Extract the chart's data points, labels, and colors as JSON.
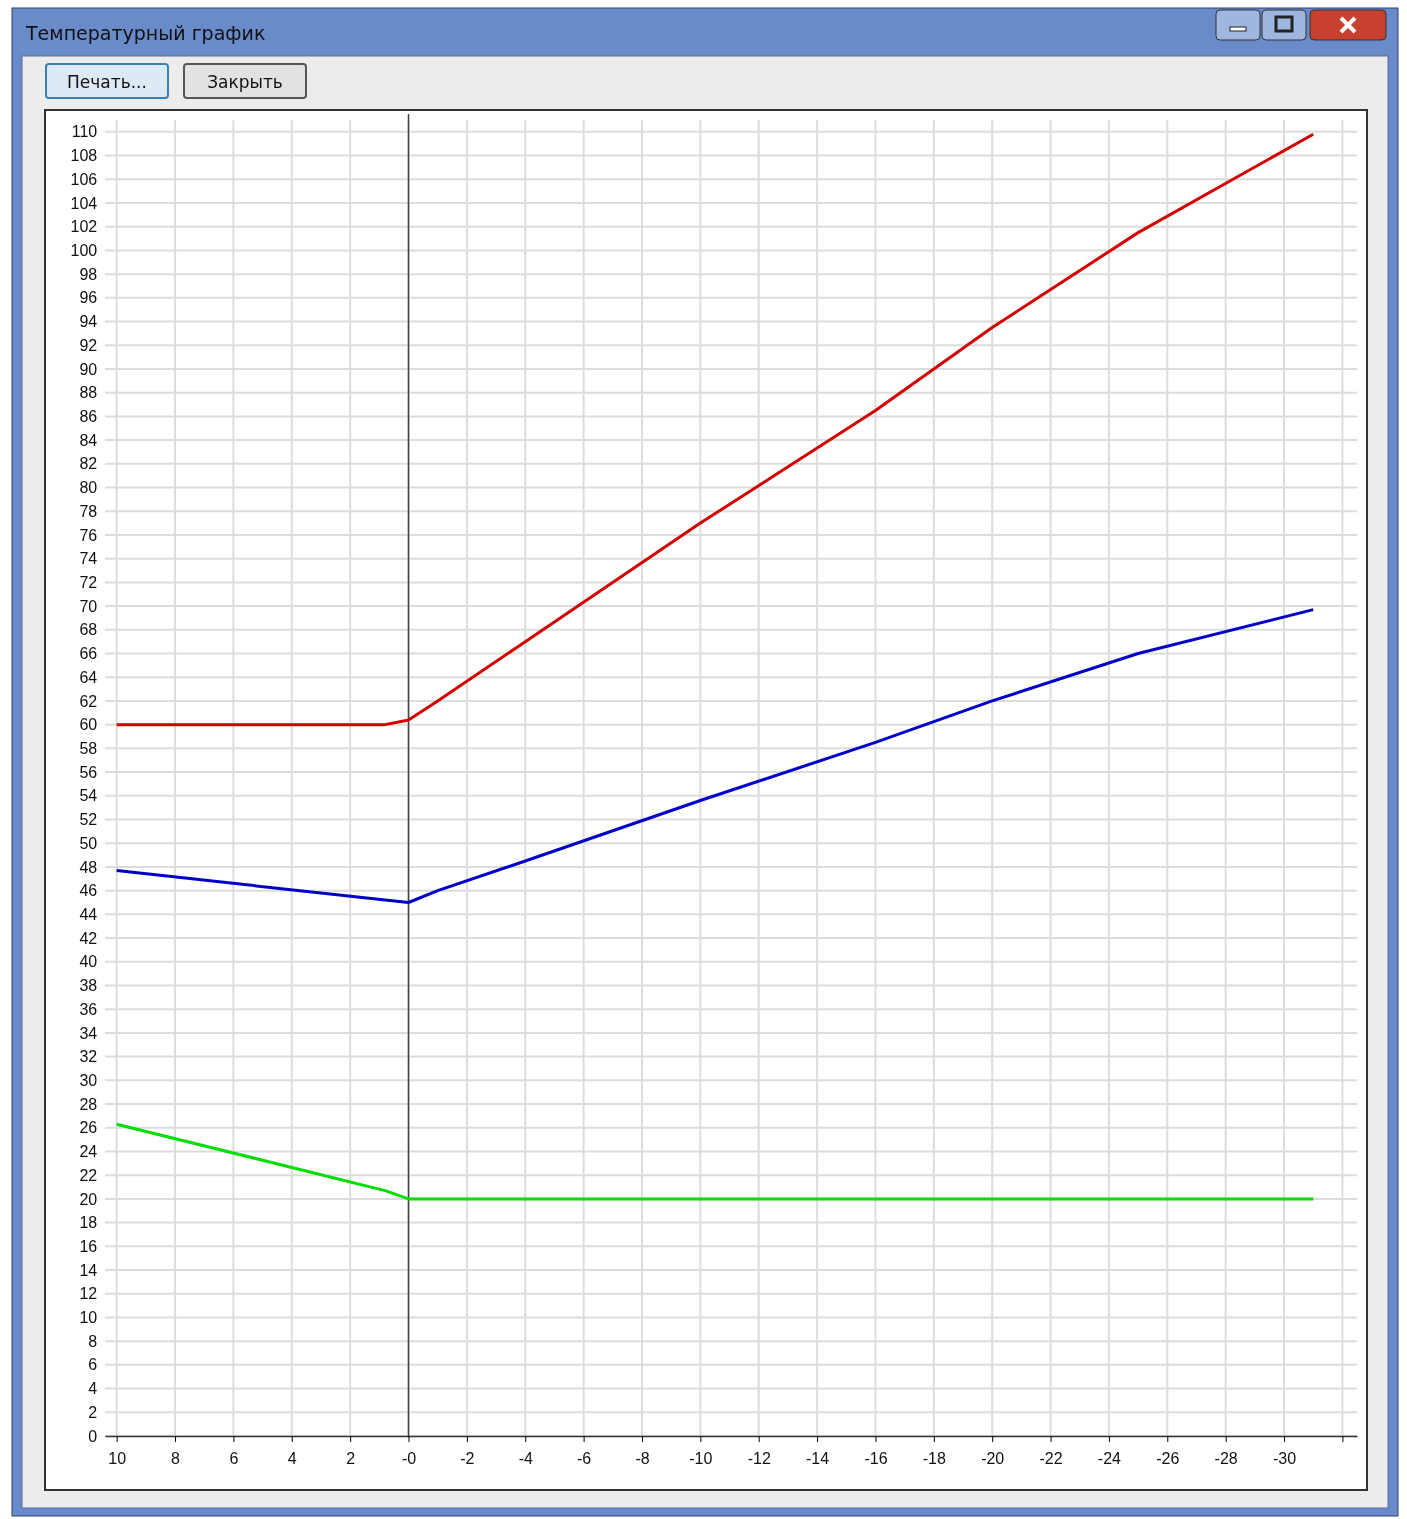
{
  "chart_data": {
    "type": "line",
    "title": "Температурный график",
    "annotations": [
      "Печать...",
      "Закрыть"
    ],
    "x": [
      10,
      0.8,
      0,
      -1,
      -4,
      -10,
      -16,
      -20,
      -25,
      -31
    ],
    "series": [
      {
        "color": "#d40000",
        "values": [
          60,
          60,
          60.4,
          62,
          67,
          77,
          86.5,
          93.5,
          101.5,
          109.8
        ]
      },
      {
        "color": "#0000c8",
        "values": [
          47.7,
          45.2,
          45,
          46,
          48.5,
          53.6,
          58.5,
          62,
          66,
          69.7
        ]
      },
      {
        "color": "#00dd00",
        "values": [
          26.3,
          20.7,
          20,
          20,
          20,
          20,
          20,
          20,
          20,
          20
        ]
      }
    ],
    "xlim": [
      10.4,
      -32.5
    ],
    "ylim": [
      0,
      111
    ],
    "xticks": [
      10,
      8,
      6,
      4,
      2,
      {
        "value": 0,
        "label": "-0"
      },
      -2,
      -4,
      -6,
      -8,
      -10,
      -12,
      -14,
      -16,
      -18,
      -20,
      -22,
      -24,
      -26,
      -28,
      -30,
      {
        "value": -32,
        "label": null
      }
    ],
    "yticks": [
      0,
      2,
      4,
      6,
      8,
      10,
      12,
      14,
      16,
      18,
      20,
      22,
      24,
      26,
      28,
      30,
      32,
      34,
      36,
      38,
      40,
      42,
      44,
      46,
      48,
      50,
      52,
      54,
      56,
      58,
      60,
      62,
      64,
      66,
      68,
      70,
      72,
      74,
      76,
      78,
      80,
      82,
      84,
      86,
      88,
      90,
      92,
      94,
      96,
      98,
      100,
      102,
      104,
      106,
      108,
      110
    ],
    "grid": true,
    "ref_lines": [
      {
        "axis": "x",
        "value": 0,
        "color": "#404040"
      }
    ]
  }
}
